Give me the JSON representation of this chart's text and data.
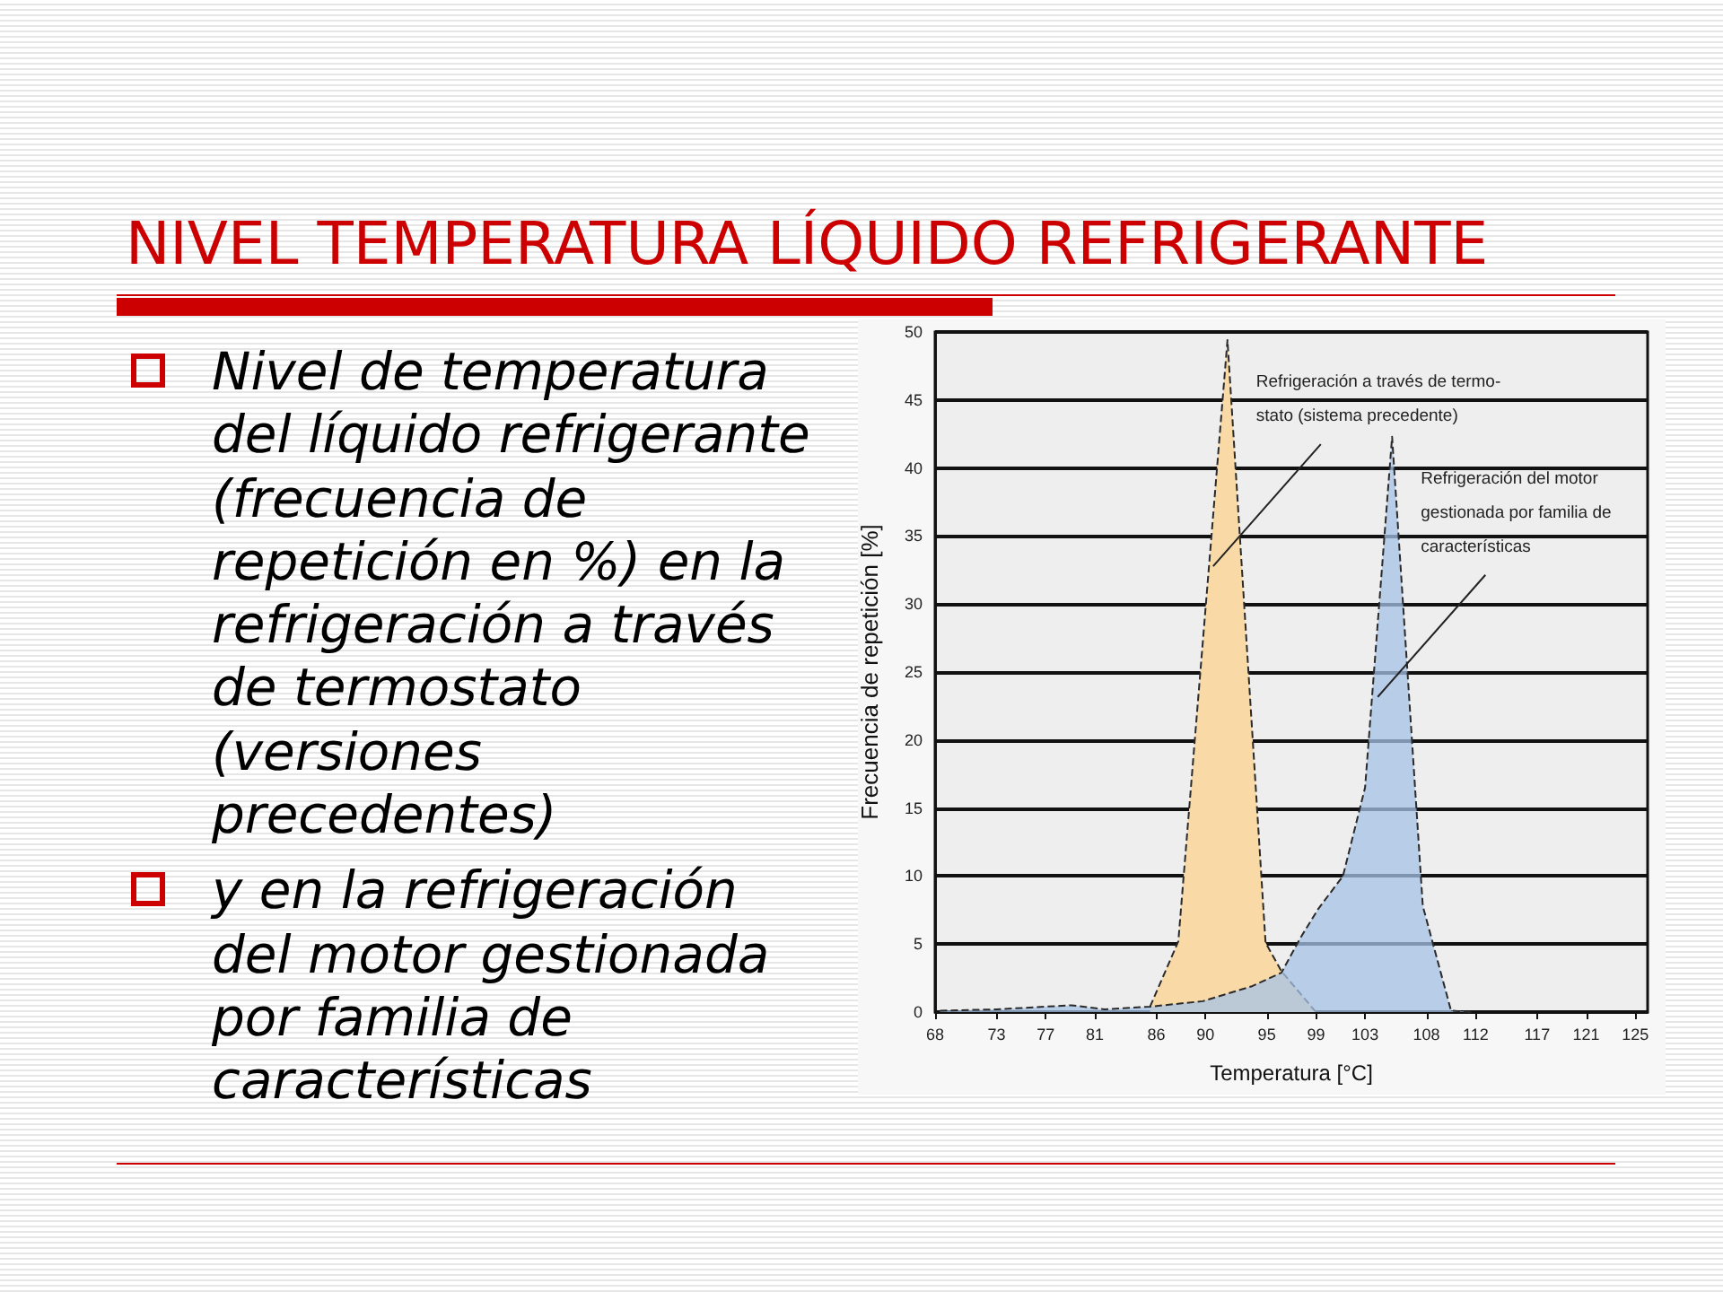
{
  "chart_data": {
    "type": "area",
    "title": "NIVEL TEMPERATURA LÍQUIDO REFRIGERANTE",
    "xlabel": "Temperatura [°C]",
    "ylabel": "Frecuencia de repetición [%]",
    "annotations": [
      "Nivel de temperatura del líquido refrigerante (frecuencia de repetición en %) en la refrigeración a través de termostato (versiones precedentes)",
      "y en la refrigeración del motor gestionada por familia de características"
    ],
    "series": [
      {
        "name": "Refrigeración a través de termo-\nstato (sistema precedente)",
        "color": "#f9d9a6",
        "x": [
          85.5,
          87.8,
          91.8,
          94.9,
          96.2,
          99.0
        ],
        "values": [
          0.4,
          5.2,
          49.4,
          5.1,
          3.0,
          0
        ]
      },
      {
        "name": "Refrigeración del motor\ngestionada por familia de\ncaracterísticas",
        "color": "#a6c1e6",
        "x": [
          68.4,
          73,
          79.1,
          81.8,
          85.5,
          89.8,
          93.8,
          96.2,
          97.7,
          99.2,
          101.2,
          103.0,
          105.2,
          107.7,
          110.0,
          111.7
        ],
        "values": [
          0.1,
          0.2,
          0.5,
          0.2,
          0.4,
          0.8,
          1.9,
          2.9,
          5.4,
          7.6,
          10.0,
          16.5,
          42.3,
          7.8,
          0.1,
          0
        ]
      }
    ],
    "xlim": [
      68,
      126
    ],
    "xticks": [
      68,
      73,
      77,
      81,
      86,
      90,
      95,
      99,
      103,
      108,
      112,
      117,
      121,
      125
    ],
    "ylim": [
      0,
      50
    ],
    "yticks": [
      0,
      5,
      10,
      15,
      20,
      25,
      30,
      35,
      40,
      45,
      50
    ],
    "grid": "y",
    "marker": "none",
    "line_style": "dashed"
  }
}
